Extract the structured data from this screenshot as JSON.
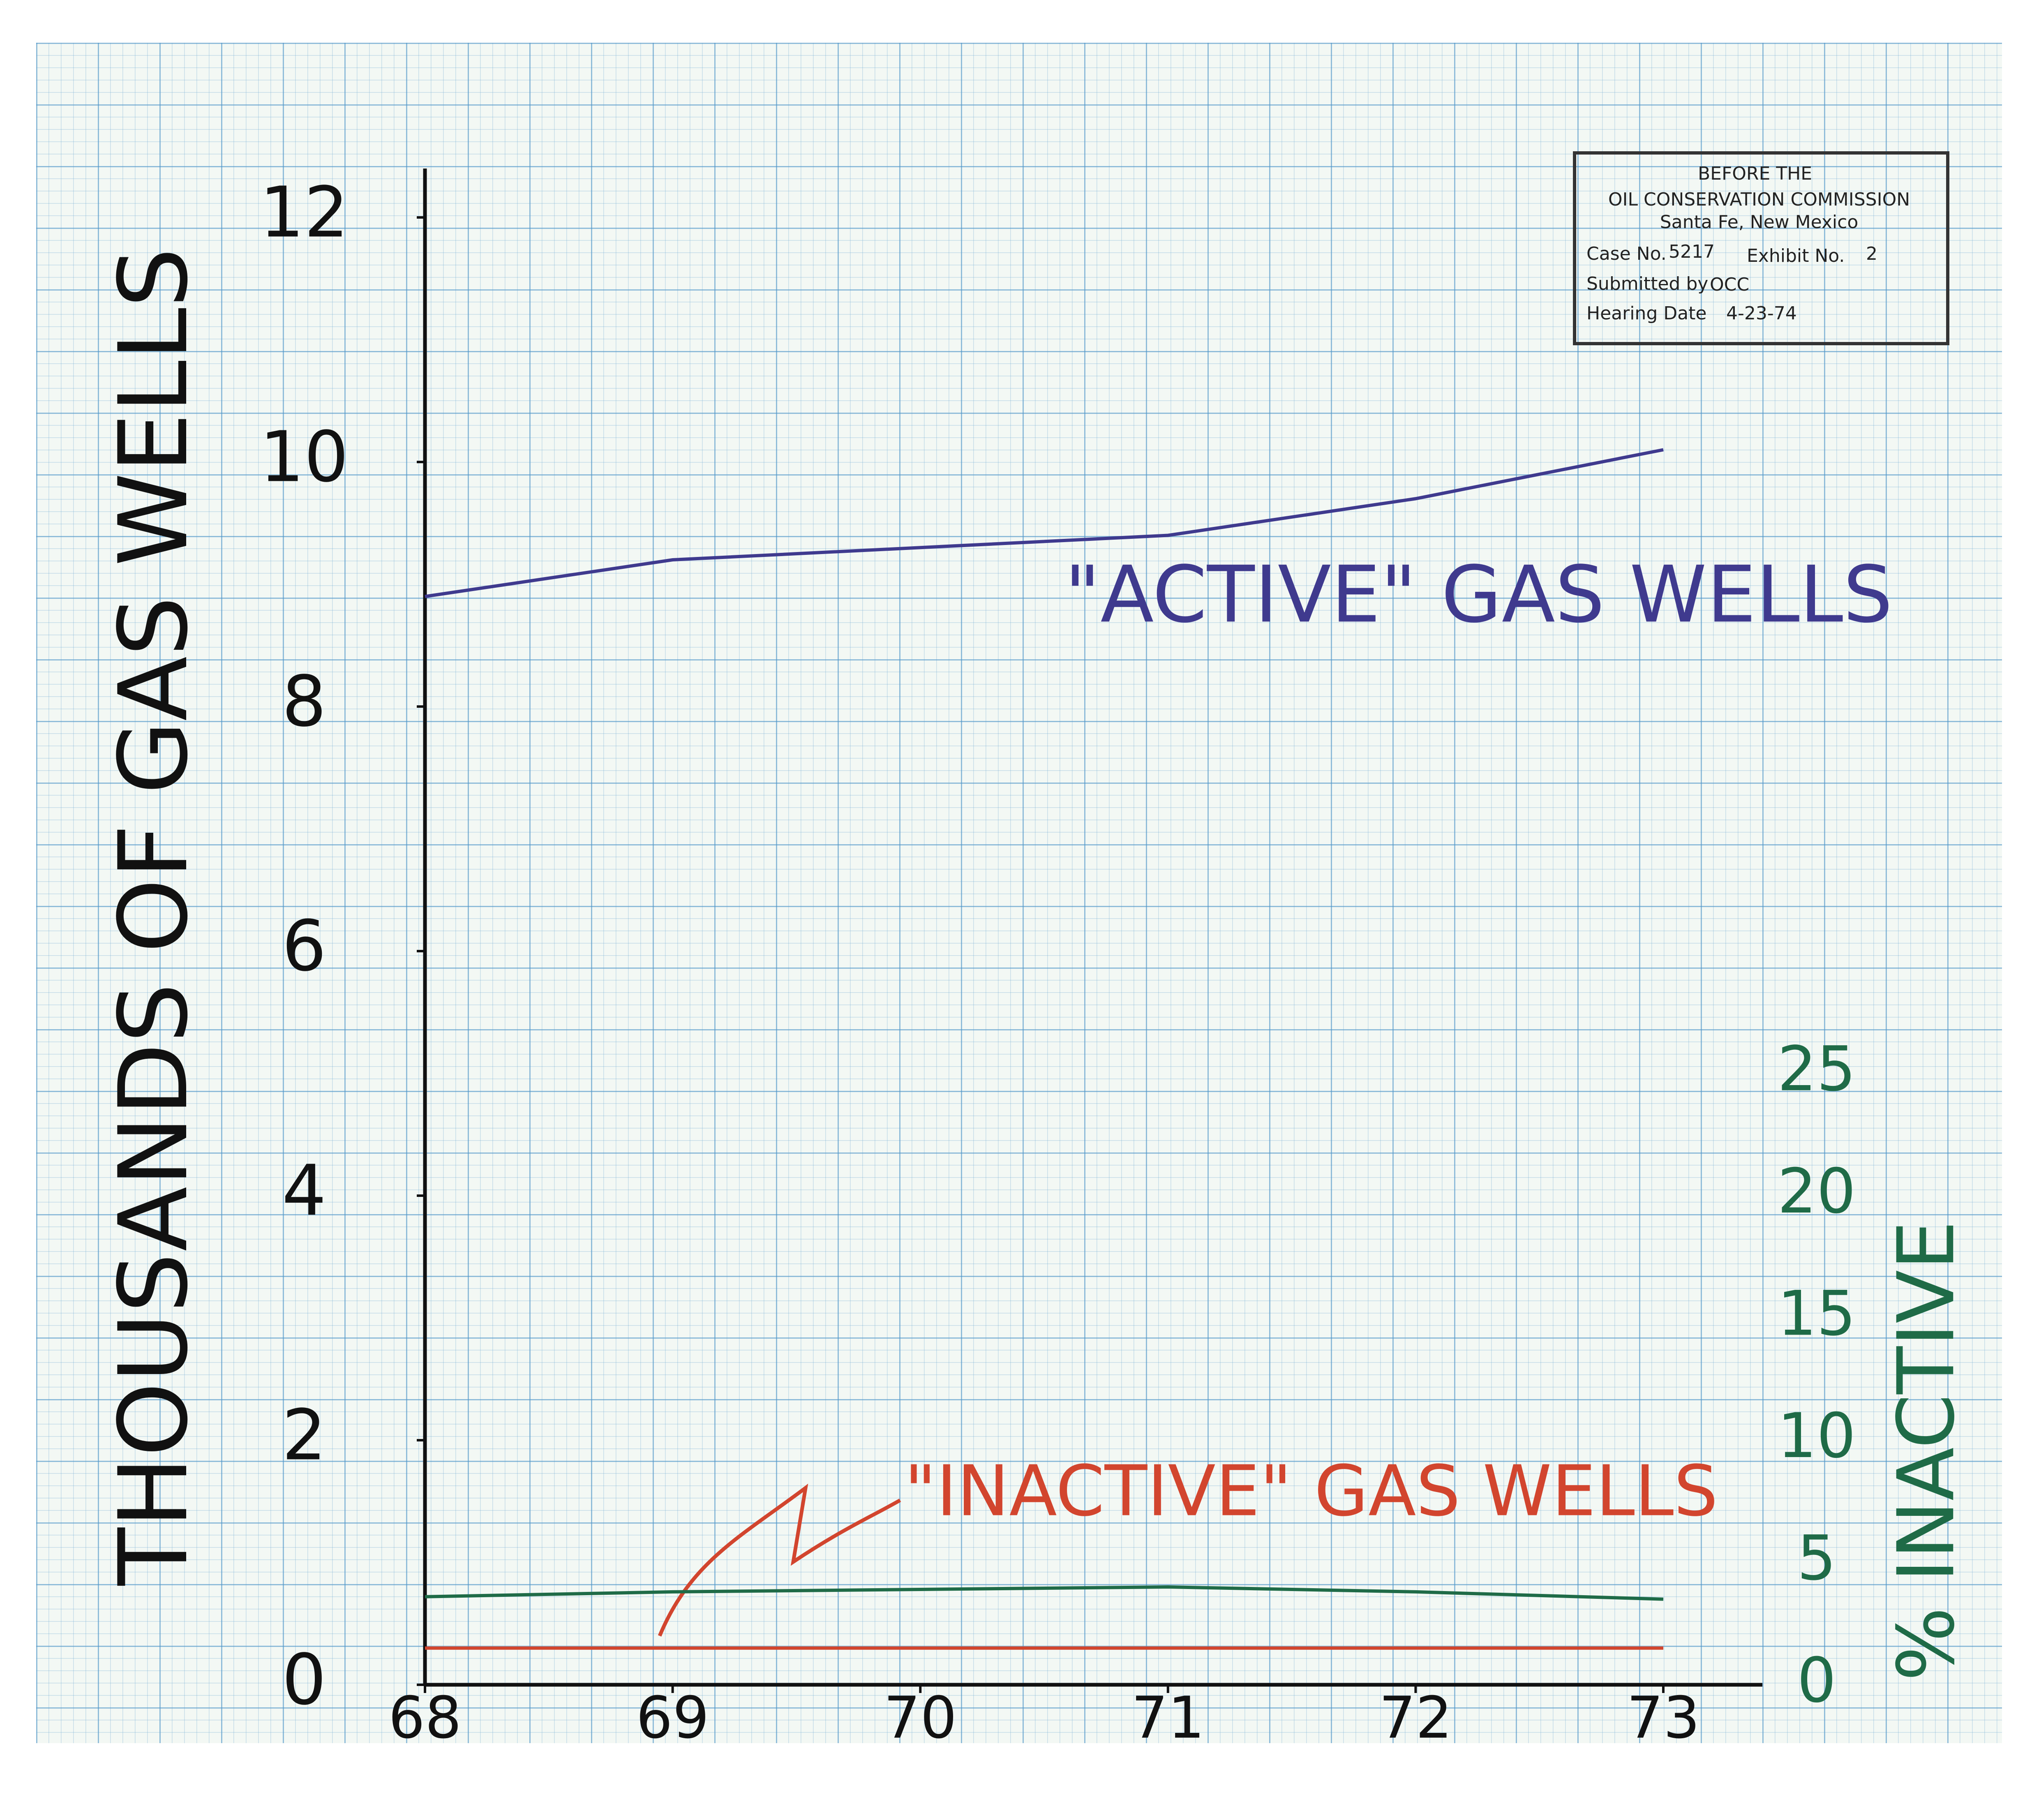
{
  "chart_data": {
    "type": "line",
    "y_label": "THOUSANDS OF GAS WELLS",
    "y2_label": "% INACTIVE",
    "x": [
      68,
      69,
      70,
      71,
      72,
      73
    ],
    "xlim": [
      68,
      73.4
    ],
    "xticks": [
      68,
      69,
      70,
      71,
      72,
      73
    ],
    "ylim": [
      0,
      12.4
    ],
    "yticks": [
      0,
      2,
      4,
      6,
      8,
      10,
      12
    ],
    "y2lim": [
      0,
      62
    ],
    "y2ticks": [
      0,
      5,
      10,
      15,
      20,
      25
    ],
    "series": [
      {
        "name": "\"ACTIVE\" GAS WELLS",
        "color": "#3f3a8e",
        "values": [
          8.9,
          9.2,
          9.3,
          9.4,
          9.7,
          10.1
        ]
      },
      {
        "name": "\"INACTIVE\" GAS WELLS",
        "color": "#d2452e",
        "values": [
          0.3,
          0.3,
          0.3,
          0.3,
          0.3,
          0.3
        ]
      },
      {
        "color": "#1f6b47",
        "axis": "y2",
        "values": [
          3.6,
          3.8,
          3.9,
          4.0,
          3.8,
          3.5
        ]
      }
    ],
    "stamp": {
      "line1": "BEFORE THE",
      "line2": "OIL CONSERVATION COMMISSION",
      "line3": "Santa Fe, New Mexico",
      "case_label": "Case No.",
      "case": "5217",
      "exhibit_label": "Exhibit No.",
      "exhibit": "2",
      "submitted_label": "Submitted by",
      "submitted": "OCC",
      "hearing_label": "Hearing Date",
      "hearing": "4-23-74"
    }
  }
}
